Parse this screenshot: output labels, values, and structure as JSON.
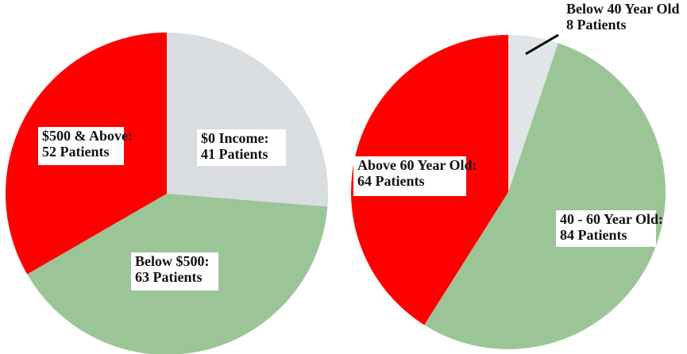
{
  "chart_data": [
    {
      "type": "pie",
      "categories": [
        "$0 Income:",
        "Below $500:",
        "$500 & Above:"
      ],
      "values": [
        41,
        63,
        52
      ],
      "value_labels": [
        "41 Patients",
        "63 Patients",
        "52 Patients"
      ],
      "colors": [
        "#d9dde0",
        "#9cc597",
        "#ff0000"
      ]
    },
    {
      "type": "pie",
      "categories": [
        "Below 40 Year Old",
        "40 - 60 Year Old:",
        "Above 60 Year Old:"
      ],
      "values": [
        8,
        84,
        64
      ],
      "value_labels": [
        "8 Patients",
        "84 Patients",
        "64 Patients"
      ],
      "colors": [
        "#e2e5e7",
        "#9cc597",
        "#ff0000"
      ]
    }
  ]
}
